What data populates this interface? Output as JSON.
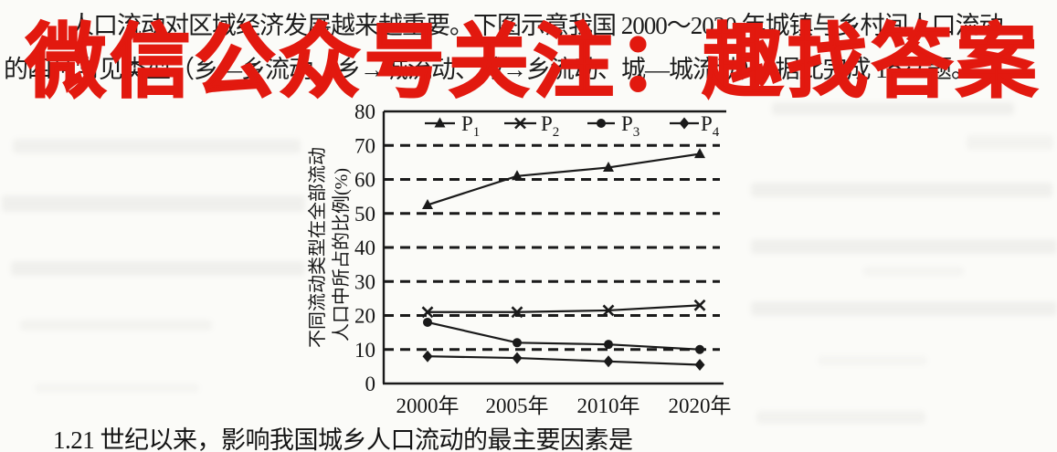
{
  "document": {
    "paragraph_line1": "人口流动对区域经济发展越来越重要。下图示意我国 2000～2020 年城镇与乡村间人口流动",
    "paragraph_line2": "的四种常见类型（乡—乡流动、乡→城流动、城→乡流动、城—城流动）。据此完成 1～2 题。",
    "question_line": "1.21 世纪以来，影响我国城乡人口流动的最主要因素是",
    "text_color": "#1b1b1b",
    "background_color": "#fbfbf8"
  },
  "watermark": {
    "text": "微信公众号关注：趣找答案",
    "color": "#e2190f"
  },
  "chart_data": {
    "type": "line",
    "title": "",
    "xlabel": "",
    "ylabel": "不同流动类型在全部流动人口中所占的比例(%)",
    "ylabel_lines": [
      "不同流动类型在全部流动",
      "人口中所占的比例(%)"
    ],
    "categories": [
      "2000年",
      "2005年",
      "2010年",
      "2020年"
    ],
    "ylim": [
      0,
      80
    ],
    "yticks": [
      0,
      10,
      20,
      30,
      40,
      50,
      60,
      70,
      80
    ],
    "grid": "horizontal dashed",
    "legend_position": "top inside",
    "line_color": "#1a1a1a",
    "series": [
      {
        "name": "P1",
        "label": "P",
        "sub": "1",
        "marker": "triangle",
        "values": [
          52.5,
          61,
          63.5,
          67.5
        ]
      },
      {
        "name": "P2",
        "label": "P",
        "sub": "2",
        "marker": "x",
        "values": [
          21,
          21,
          21.5,
          23
        ]
      },
      {
        "name": "P3",
        "label": "P",
        "sub": "3",
        "marker": "circle",
        "values": [
          18,
          12,
          11.5,
          10
        ]
      },
      {
        "name": "P4",
        "label": "P",
        "sub": "4",
        "marker": "diamond",
        "values": [
          8,
          7.5,
          6.5,
          5.5
        ]
      }
    ]
  }
}
